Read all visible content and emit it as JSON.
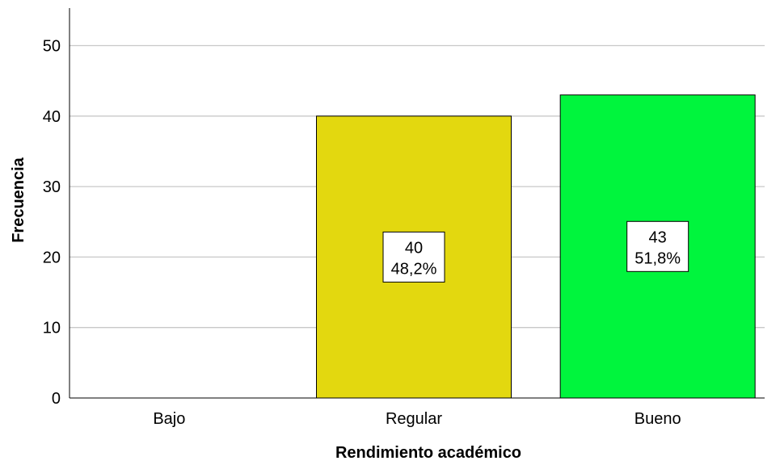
{
  "chart_data": {
    "type": "bar",
    "categories": [
      "Bajo",
      "Regular",
      "Bueno"
    ],
    "values": [
      0,
      40,
      43
    ],
    "percentages": [
      "",
      "48,2%",
      "51,8%"
    ],
    "xlabel": "Rendimiento académico",
    "ylabel": "Frecuencia",
    "ylim": [
      0,
      55
    ],
    "yticks": [
      0,
      10,
      20,
      30,
      40,
      50
    ],
    "grid": true,
    "colors": [
      "#e3d80f",
      "#e3d80f",
      "#00f53d"
    ]
  }
}
